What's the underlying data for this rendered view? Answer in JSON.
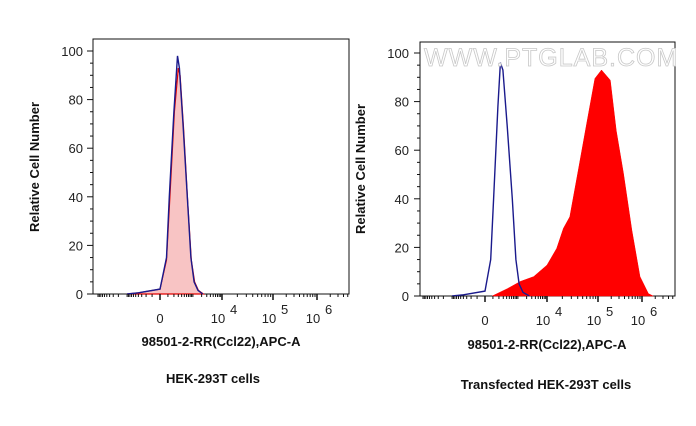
{
  "watermark": "WWW.PTGLAB.COM",
  "colors": {
    "control_line": "#1a1a8c",
    "sample_red": "#ff0000",
    "sample_pink_fill": "#f8c4c4"
  },
  "chart_data": [
    {
      "type": "area",
      "title": "HEK-293T cells",
      "xlabel": "98501-2-RR(Ccl22),APC-A",
      "ylabel": "Relative Cell Number",
      "x_scale": "biexponential",
      "x_ticks": [
        {
          "value": 0,
          "base": "0",
          "exp": ""
        },
        {
          "value": 10000,
          "base": "10",
          "exp": "4"
        },
        {
          "value": 100000,
          "base": "10",
          "exp": "5"
        },
        {
          "value": 1000000,
          "base": "10",
          "exp": "6"
        }
      ],
      "y_ticks": [
        "0",
        "20",
        "40",
        "60",
        "80",
        "100"
      ],
      "ylim": [
        0,
        100
      ],
      "grid": false,
      "series": [
        {
          "style": "filled-pink-red-outline",
          "color": "#e00000",
          "x": [
            -1000,
            -400,
            0,
            80,
            130,
            210,
            300,
            350,
            470,
            660,
            880,
            1150,
            1550,
            2300
          ],
          "y": [
            0,
            0.5,
            2,
            14,
            40,
            75,
            93,
            90,
            68,
            38,
            14,
            5,
            1.5,
            0
          ]
        },
        {
          "style": "line",
          "color": "#1a1a8c",
          "x": [
            -1000,
            -400,
            0,
            80,
            120,
            200,
            280,
            330,
            450,
            640,
            850,
            1100,
            1500,
            2200
          ],
          "y": [
            0,
            0.5,
            2,
            15,
            40,
            75,
            98,
            93,
            70,
            40,
            15,
            5,
            1.5,
            0
          ]
        }
      ]
    },
    {
      "type": "area",
      "title": "Transfected HEK-293T cells",
      "xlabel": "98501-2-RR(Ccl22),APC-A",
      "ylabel": "Relative Cell Number",
      "x_scale": "biexponential",
      "x_ticks": [
        {
          "value": 0,
          "base": "0",
          "exp": ""
        },
        {
          "value": 10000,
          "base": "10",
          "exp": "4"
        },
        {
          "value": 100000,
          "base": "10",
          "exp": "5"
        },
        {
          "value": 1000000,
          "base": "10",
          "exp": "6"
        }
      ],
      "y_ticks": [
        "0",
        "20",
        "40",
        "60",
        "80",
        "100"
      ],
      "ylim": [
        0,
        100
      ],
      "grid": false,
      "series": [
        {
          "style": "filled-red",
          "color": "#ff0000",
          "x": [
            90,
            423,
            1230,
            3500,
            10000,
            15500,
            21000,
            28000,
            41000,
            60000,
            87000,
            120000,
            190000,
            260000,
            380000,
            590000,
            900000,
            1400000,
            1800000
          ],
          "y": [
            0,
            3,
            6,
            8,
            12.7,
            19.6,
            27.8,
            32.6,
            51.8,
            71,
            89.5,
            93,
            88.8,
            68,
            50.4,
            27,
            8,
            1,
            0
          ]
        },
        {
          "style": "line",
          "color": "#1a1a8c",
          "x": [
            -1000,
            -400,
            0,
            70,
            110,
            180,
            230,
            290,
            420,
            640,
            850,
            1100,
            1500,
            2500
          ],
          "y": [
            0,
            0.5,
            2,
            15,
            40,
            78,
            96,
            93,
            70,
            40,
            15,
            5,
            1.5,
            0
          ]
        }
      ]
    }
  ]
}
